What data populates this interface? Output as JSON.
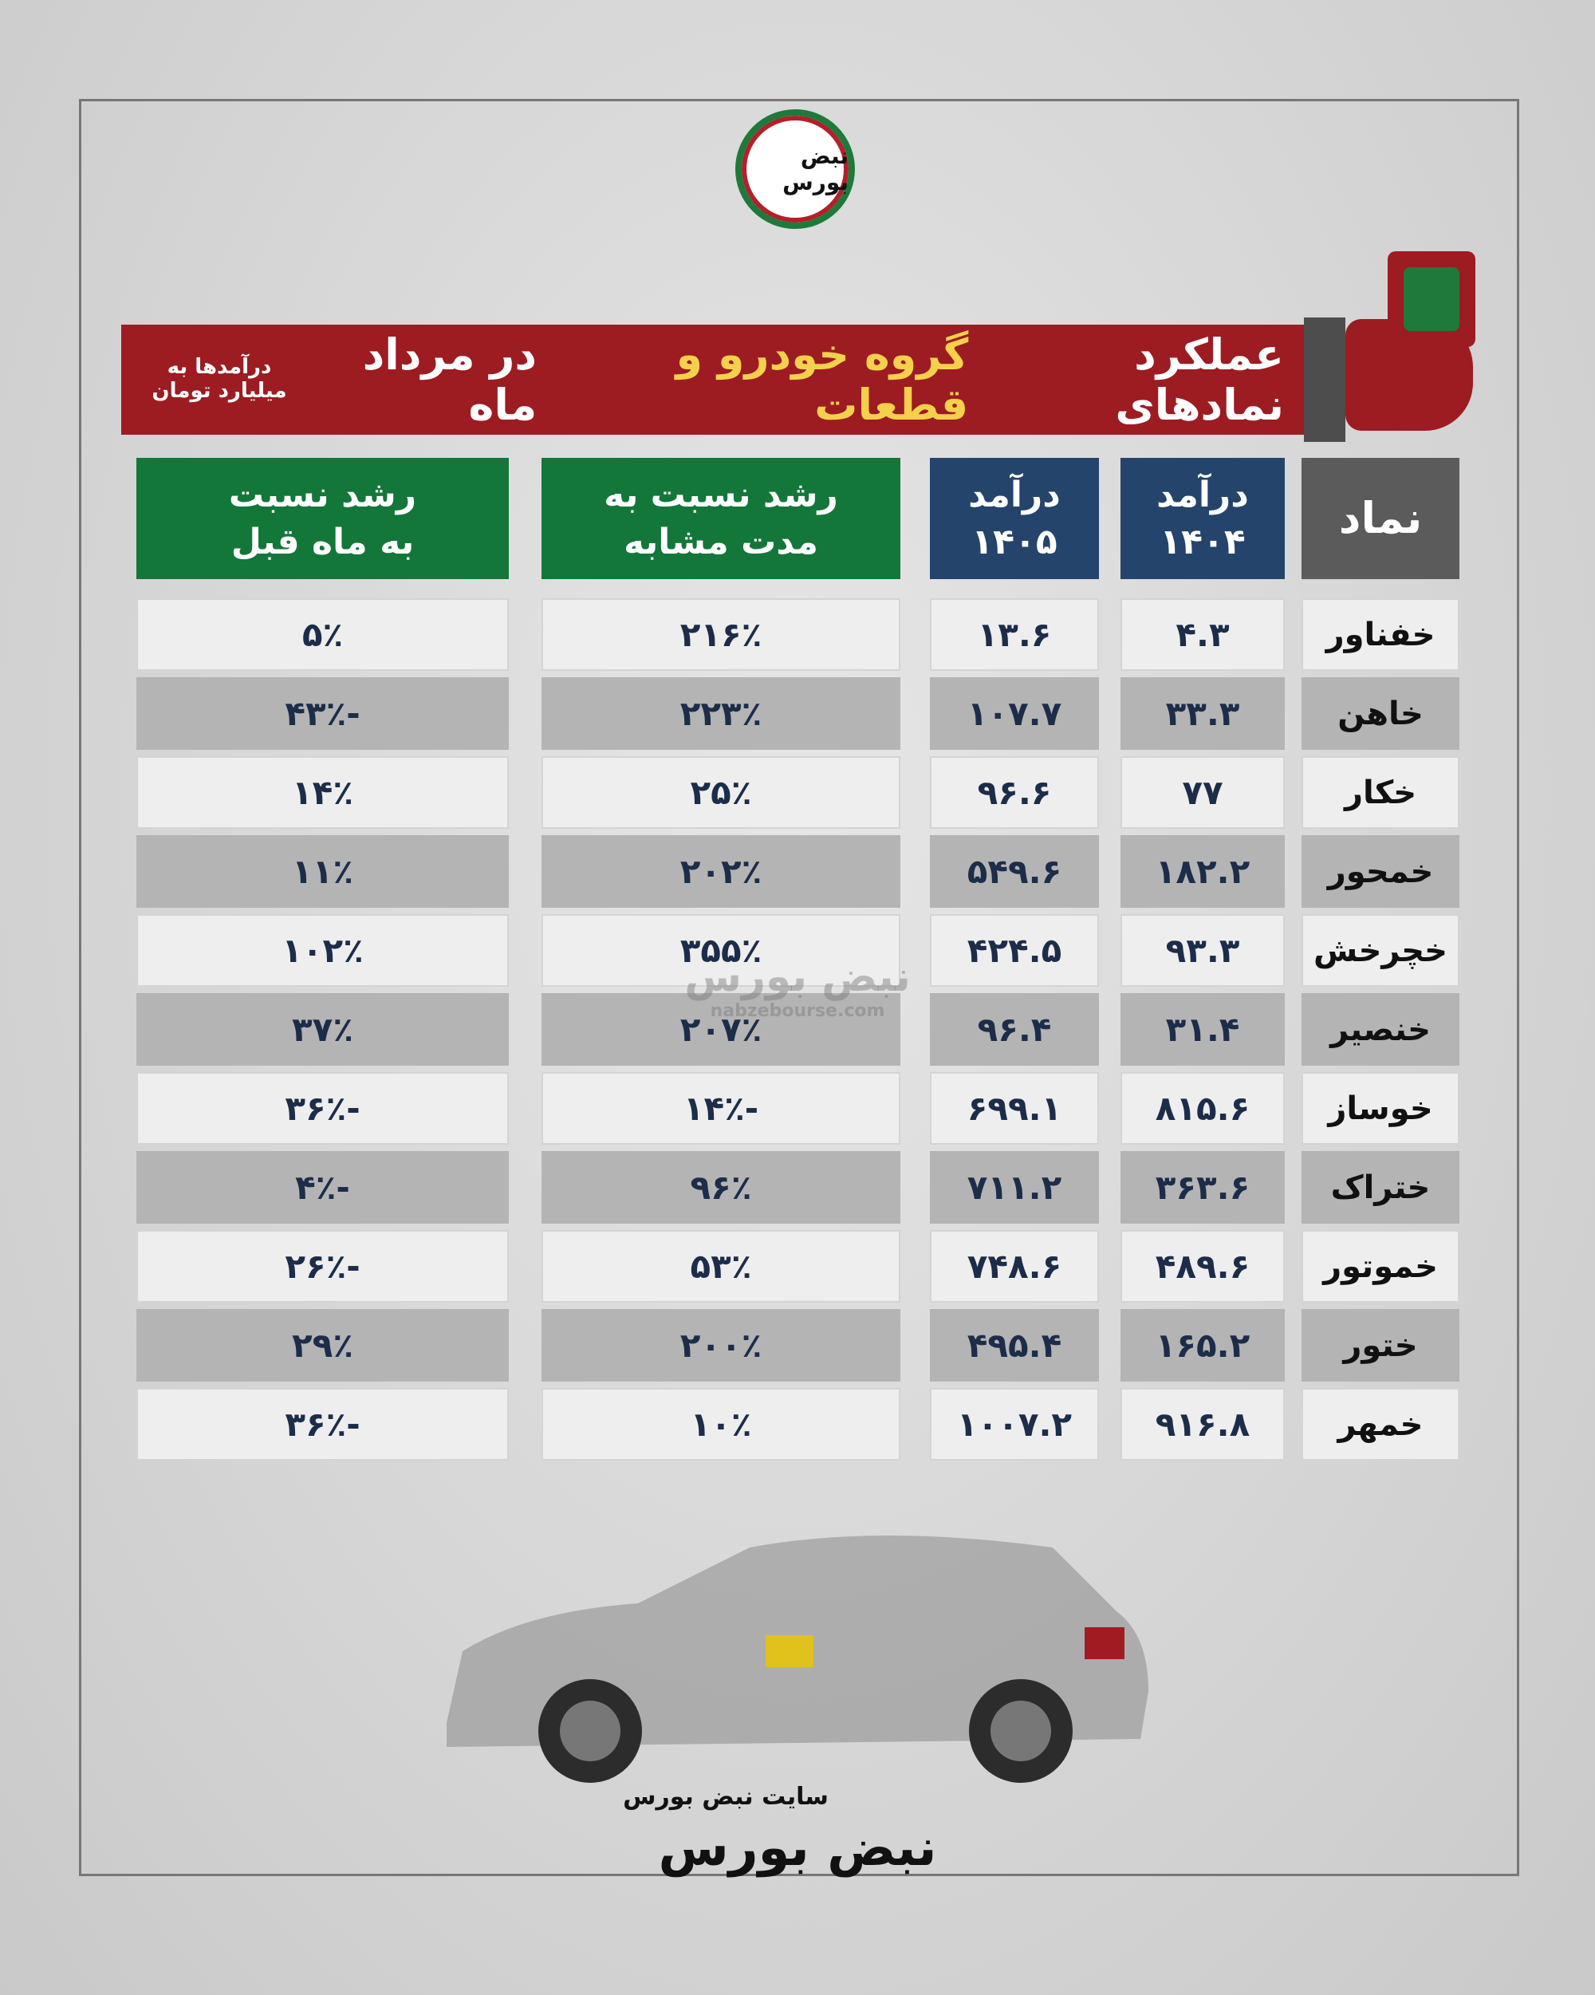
{
  "logo": {
    "text": "نبض بورس"
  },
  "header": {
    "title_before": "عملکرد نمادهای",
    "title_highlight": "گروه خودرو و قطعات",
    "title_after": "در مرداد ماه",
    "note": [
      "درآمدها به",
      "میلیارد تومان"
    ]
  },
  "table": {
    "headers": [
      [
        "نماد"
      ],
      [
        "درآمد",
        "۱۴۰۴"
      ],
      [
        "درآمد",
        "۱۴۰۵"
      ],
      [
        "رشد نسبت به",
        "مدت مشابه"
      ],
      [
        "رشد نسبت",
        "به ماه قبل"
      ]
    ],
    "rows": [
      [
        "خفناور",
        "۴.۳",
        "۱۳.۶",
        "۲۱۶٪",
        "۵٪"
      ],
      [
        "خاهن",
        "۳۳.۳",
        "۱۰۷.۷",
        "۲۲۳٪",
        "-۴۳٪"
      ],
      [
        "خکار",
        "۷۷",
        "۹۶.۶",
        "۲۵٪",
        "۱۴٪"
      ],
      [
        "خمحور",
        "۱۸۲.۲",
        "۵۴۹.۶",
        "۲۰۲٪",
        "۱۱٪"
      ],
      [
        "خچرخش",
        "۹۳.۳",
        "۴۲۴.۵",
        "۳۵۵٪",
        "۱۰۲٪"
      ],
      [
        "خنصیر",
        "۳۱.۴",
        "۹۶.۴",
        "۲۰۷٪",
        "۳۷٪"
      ],
      [
        "خوساز",
        "۸۱۵.۶",
        "۶۹۹.۱",
        "-۱۴٪",
        "-۳۶٪"
      ],
      [
        "ختراک",
        "۳۶۳.۶",
        "۷۱۱.۲",
        "۹۶٪",
        "-۴٪"
      ],
      [
        "خموتور",
        "۴۸۹.۶",
        "۷۴۸.۶",
        "۵۳٪",
        "-۲۶٪"
      ],
      [
        "ختور",
        "۱۶۵.۲",
        "۴۹۵.۴",
        "۲۰۰٪",
        "۲۹٪"
      ],
      [
        "خمهر",
        "۹۱۶.۸",
        "۱۰۰۷.۲",
        "۱۰٪",
        "-۳۶٪"
      ]
    ]
  },
  "watermark": {
    "text": "نبض بورس",
    "url": "nabzebourse.com"
  },
  "footer": {
    "site": "سایت نبض بورس",
    "brand": "نبض بورس"
  }
}
